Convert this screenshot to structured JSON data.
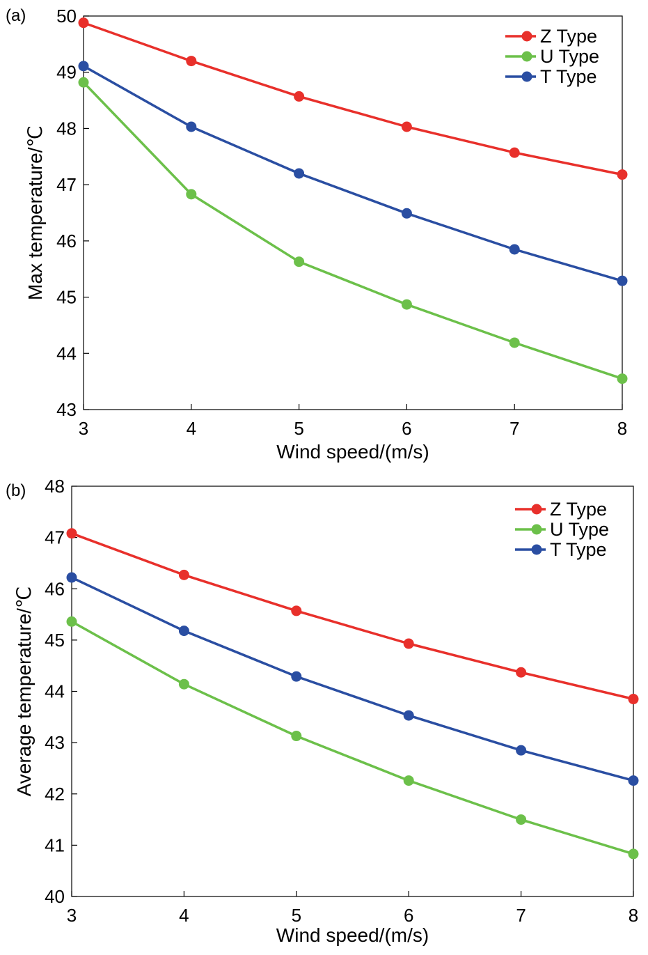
{
  "chart_data": [
    {
      "type": "line",
      "panel_label": "(a)",
      "xlabel": "Wind speed/(m/s)",
      "ylabel": "Max temperature/℃",
      "xlim": [
        3,
        8
      ],
      "ylim": [
        43,
        50
      ],
      "xticks": [
        "3",
        "4",
        "5",
        "6",
        "7",
        "8"
      ],
      "yticks": [
        "43",
        "44",
        "45",
        "46",
        "47",
        "48",
        "49",
        "50"
      ],
      "x": [
        3,
        4,
        5,
        6,
        7,
        8
      ],
      "legend": "top-right",
      "grid": false,
      "series": [
        {
          "name": "Z Type",
          "color": "#e8302b",
          "values": [
            49.88,
            49.2,
            48.57,
            48.03,
            47.57,
            47.18
          ]
        },
        {
          "name": "U Type",
          "color": "#6cc04a",
          "values": [
            48.82,
            46.83,
            45.63,
            44.87,
            44.19,
            43.55
          ]
        },
        {
          "name": "T Type",
          "color": "#2a4ea2",
          "values": [
            49.11,
            48.03,
            47.2,
            46.49,
            45.85,
            45.29
          ]
        }
      ]
    },
    {
      "type": "line",
      "panel_label": "(b)",
      "xlabel": "Wind speed/(m/s)",
      "ylabel": "Average temperature/℃",
      "xlim": [
        3,
        8
      ],
      "ylim": [
        40,
        48
      ],
      "xticks": [
        "3",
        "4",
        "5",
        "6",
        "7",
        "8"
      ],
      "yticks": [
        "40",
        "41",
        "42",
        "43",
        "44",
        "45",
        "46",
        "47",
        "48"
      ],
      "x": [
        3,
        4,
        5,
        6,
        7,
        8
      ],
      "legend": "top-right",
      "grid": false,
      "series": [
        {
          "name": "Z Type",
          "color": "#e8302b",
          "values": [
            47.08,
            46.27,
            45.57,
            44.93,
            44.37,
            43.85
          ]
        },
        {
          "name": "U Type",
          "color": "#6cc04a",
          "values": [
            45.36,
            44.14,
            43.13,
            42.26,
            41.5,
            40.83
          ]
        },
        {
          "name": "T Type",
          "color": "#2a4ea2",
          "values": [
            46.22,
            45.18,
            44.29,
            43.53,
            42.85,
            42.26
          ]
        }
      ]
    }
  ]
}
